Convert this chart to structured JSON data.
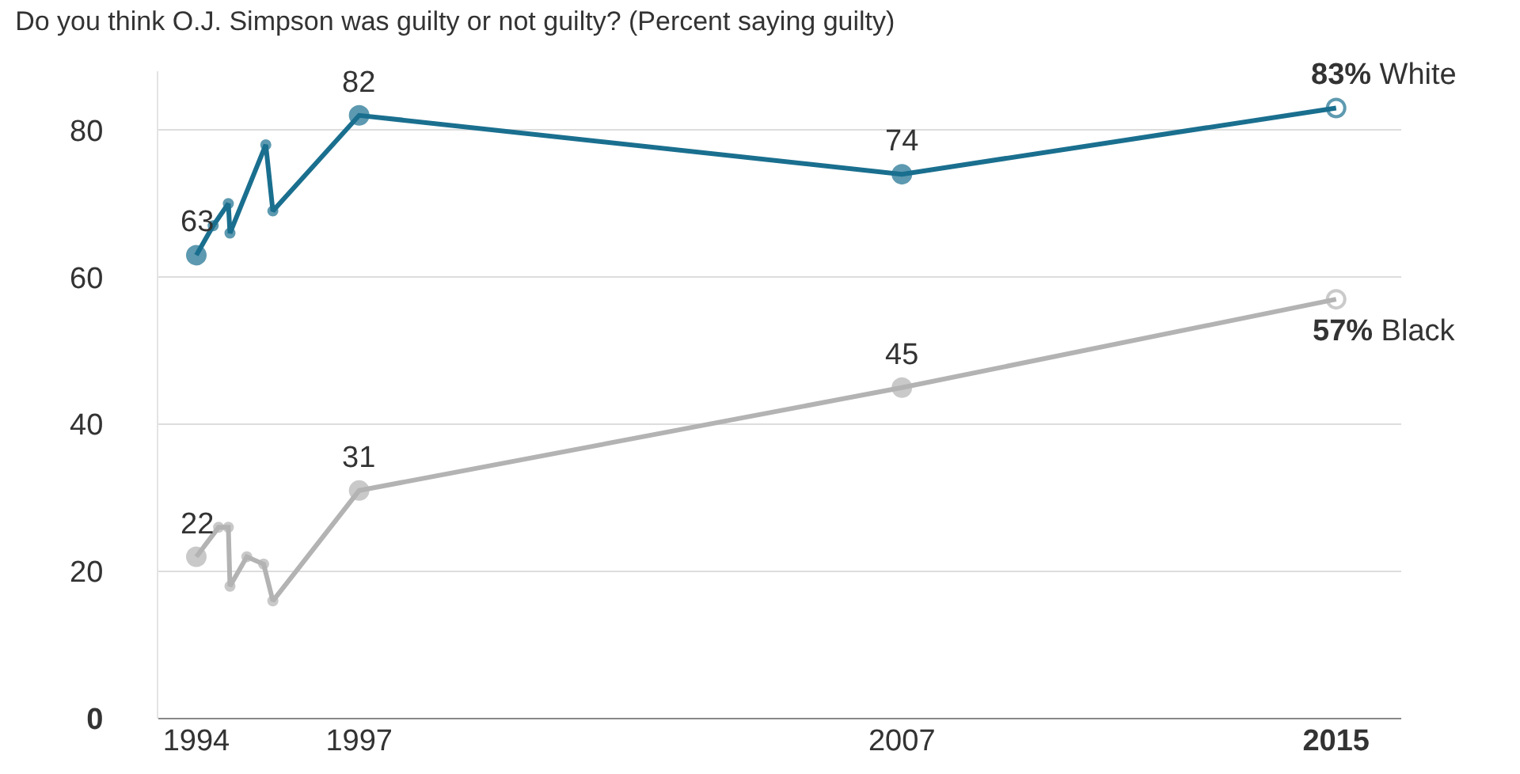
{
  "chart_data": {
    "type": "line",
    "title": "Do you think O.J. Simpson was guilty or not guilty? (Percent saying guilty)",
    "xlim": [
      1993.3,
      2016.2
    ],
    "xticks": [
      1994,
      1997,
      2007,
      2015
    ],
    "ylim": [
      0,
      88
    ],
    "yticks": [
      0,
      20,
      40,
      60,
      80
    ],
    "grid": "y",
    "legend": false,
    "marker": "circle",
    "line_style": "solid",
    "series": [
      {
        "name": "White",
        "color": "#1a6f8f",
        "x": [
          1994,
          1994.31,
          1994.59,
          1994.62,
          1995.28,
          1995.41,
          1997,
          2007,
          2015
        ],
        "values": [
          63,
          67,
          70,
          66,
          78,
          69,
          82,
          74,
          83
        ],
        "value_labels": [
          "63",
          null,
          null,
          null,
          null,
          null,
          "82",
          "74",
          "83%"
        ]
      },
      {
        "name": "Black",
        "color": "#b3b3b3",
        "x": [
          1994,
          1994.41,
          1994.59,
          1994.62,
          1994.93,
          1995.24,
          1995.41,
          1997,
          2007,
          2015
        ],
        "values": [
          22,
          26,
          26,
          18,
          22,
          21,
          16,
          31,
          45,
          57
        ],
        "value_labels": [
          "22",
          null,
          null,
          null,
          null,
          null,
          null,
          "31",
          "45",
          "57%"
        ]
      }
    ]
  }
}
